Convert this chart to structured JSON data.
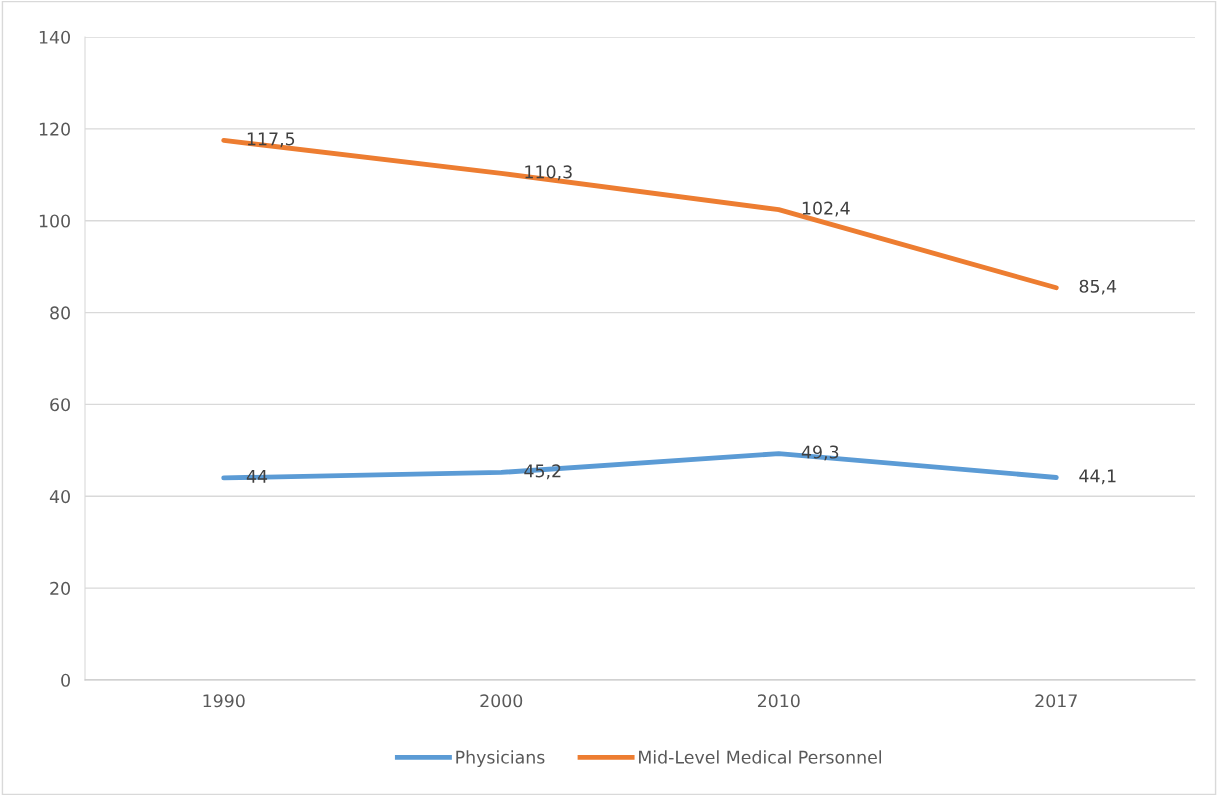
{
  "chart_data": {
    "type": "line",
    "categories": [
      "1990",
      "2000",
      "2010",
      "2017"
    ],
    "series": [
      {
        "name": "Physicians",
        "color": "#5b9bd5",
        "values": [
          44,
          45.2,
          49.3,
          44.1
        ],
        "value_labels": [
          "44",
          "45,2",
          "49,3",
          "44,1"
        ]
      },
      {
        "name": "Mid-Level Medical Personnel",
        "color": "#ed7d31",
        "values": [
          117.5,
          110.3,
          102.4,
          85.4
        ],
        "value_labels": [
          "117,5",
          "110,3",
          "102,4",
          "85,4"
        ]
      }
    ],
    "ylim": [
      0,
      140
    ],
    "yticks": [
      0,
      20,
      40,
      60,
      80,
      100,
      120,
      140
    ],
    "grid": "y",
    "legend": "bottom",
    "marker": "none",
    "line_style": "solid"
  }
}
